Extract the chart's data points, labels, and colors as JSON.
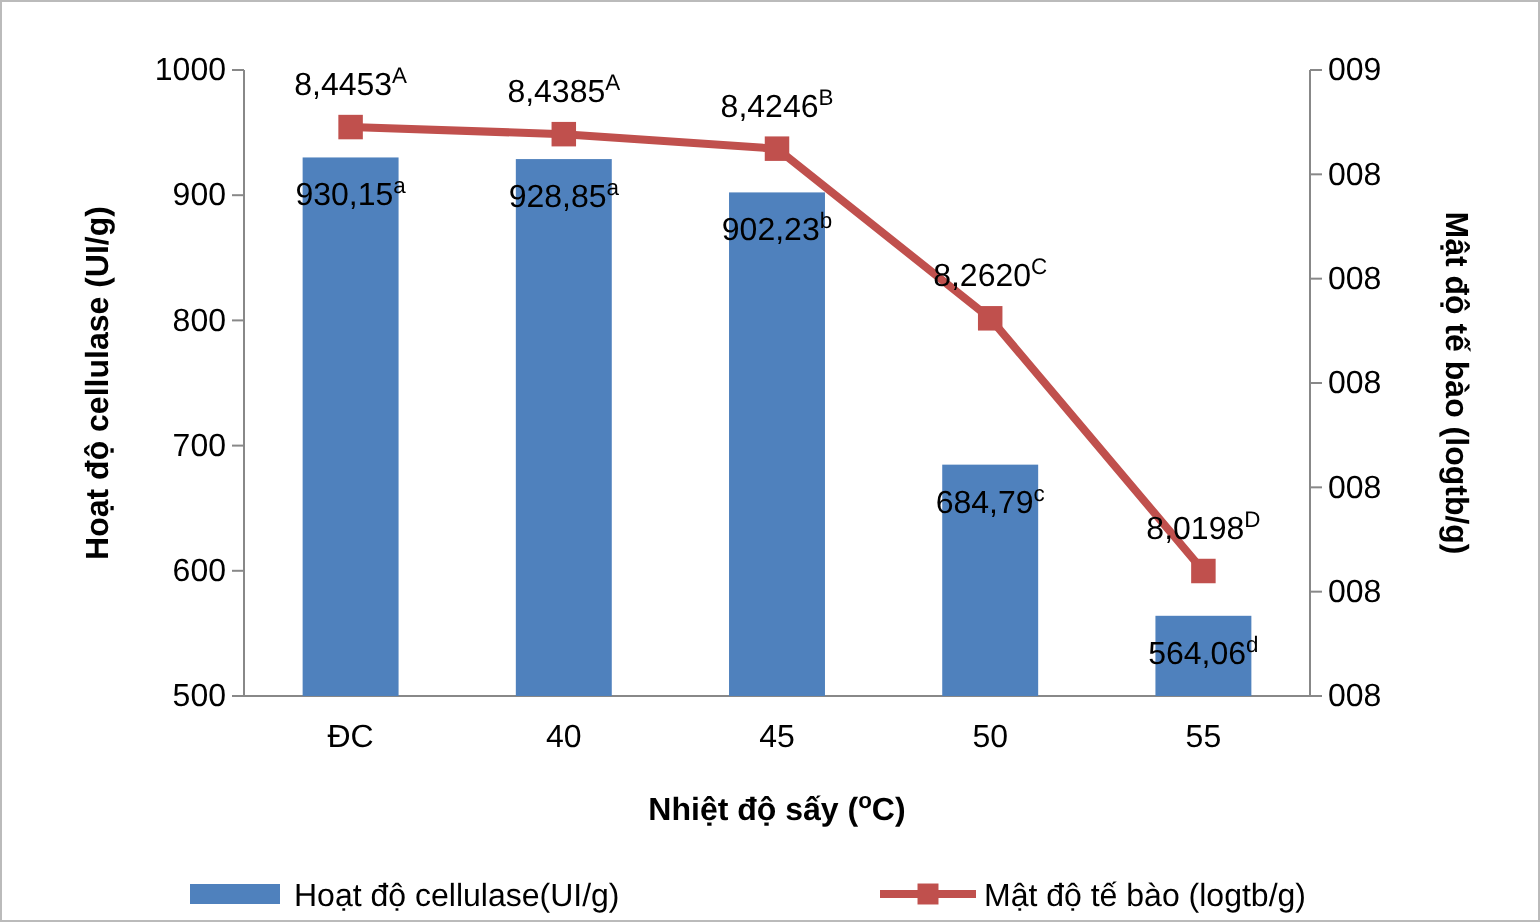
{
  "chart_data": {
    "type": "bar",
    "xlabel": "Nhiệt độ sấy ($^{o}$C)",
    "ylabel": "Hoạt độ cellulase (UI/g)",
    "y2label": "Mật độ tế bào (logtb/g)",
    "categories": [
      "ĐC",
      "40",
      "45",
      "50",
      "55"
    ],
    "series": [
      {
        "name": "Hoạt độ cellulase(UI/g)",
        "color": "#4f81bd",
        "values": [
          930.15,
          928.85,
          902.23,
          684.79,
          564.06
        ],
        "value_labels": [
          "930,15$^{a}$",
          "928,85$^{a}$",
          "902,23$^{b}$",
          "684,79$^{c}$",
          "564,06$^{d}$"
        ]
      },
      {
        "name": "Mật độ tế bào (logtb/g)",
        "type": "line",
        "axis": "y2",
        "color": "#c0504d",
        "marker": "square",
        "values": [
          8.4453,
          8.4385,
          8.4246,
          8.262,
          8.0198
        ],
        "value_labels": [
          "8,4453$^{A}$",
          "8,4385$^{A}$",
          "8,4246$^{B}$",
          "8,2620$^{C}$",
          "8,0198$^{D}$"
        ]
      }
    ],
    "ylim": [
      500,
      1000
    ],
    "yticks": [
      500,
      600,
      700,
      800,
      900,
      1000
    ],
    "y2lim": [
      7.9,
      8.5
    ],
    "y2ticks": [
      {
        "value": 7.9,
        "label": "008"
      },
      {
        "value": 8.0,
        "label": "008"
      },
      {
        "value": 8.1,
        "label": "008"
      },
      {
        "value": 8.2,
        "label": "008"
      },
      {
        "value": 8.3,
        "label": "008"
      },
      {
        "value": 8.4,
        "label": "008"
      },
      {
        "value": 8.5,
        "label": "009"
      }
    ],
    "legend": "bottom"
  }
}
